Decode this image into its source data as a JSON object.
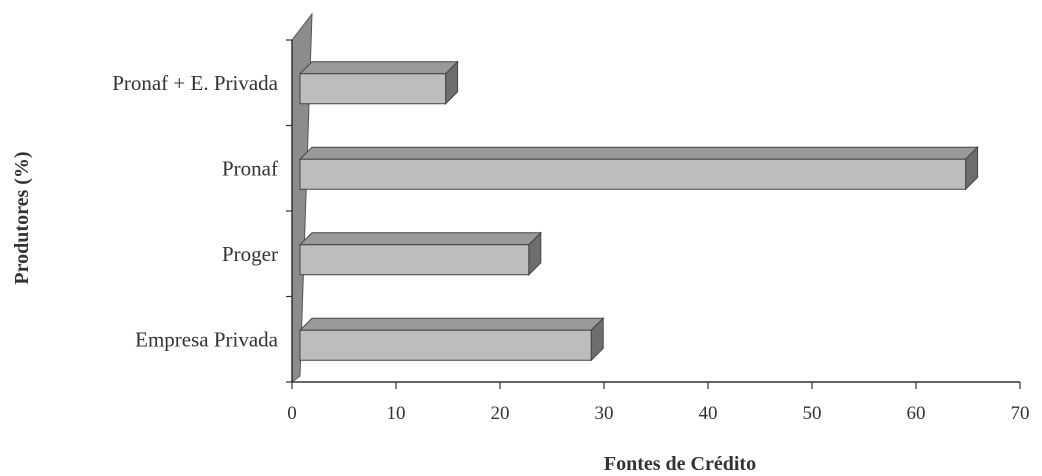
{
  "chart_data": {
    "type": "bar",
    "orientation": "horizontal",
    "style": "3d",
    "categories": [
      "Empresa Privada",
      "Proger",
      "Pronaf",
      "Pronaf + E. Privada"
    ],
    "values": [
      28,
      22,
      64,
      14
    ],
    "xlabel": "Fontes de Crédito",
    "ylabel": "Produtores (%)",
    "xlim": [
      0,
      70
    ],
    "xticks": [
      0,
      10,
      20,
      30,
      40,
      50,
      60,
      70
    ],
    "grid": false,
    "colors": {
      "bar_front": "#bdbdbd",
      "bar_top": "#9a9a9a",
      "bar_side": "#6e6e6e",
      "wall": "#8c8c8c",
      "axis": "#333333"
    }
  }
}
